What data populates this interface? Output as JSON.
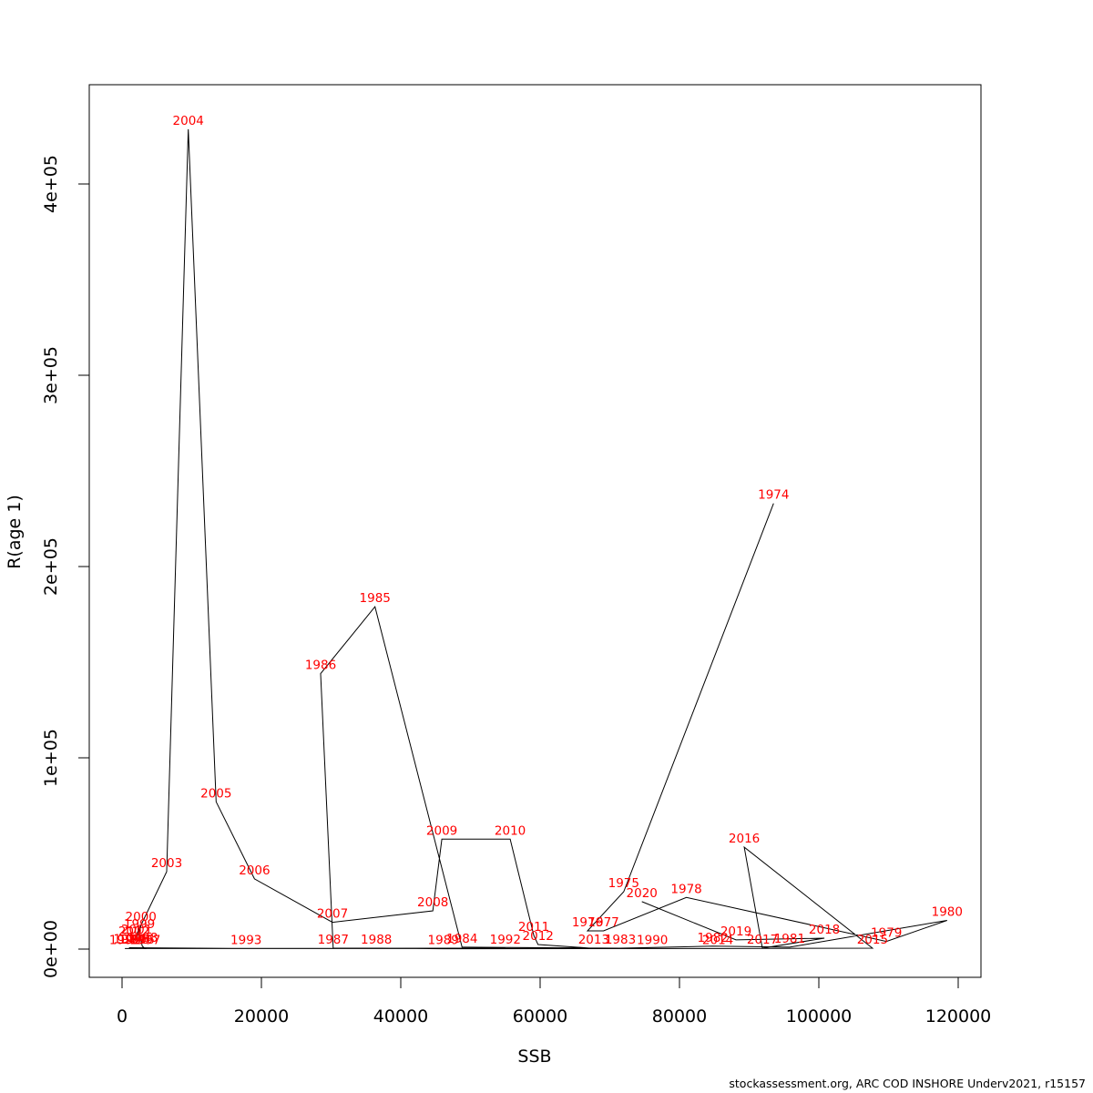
{
  "footer": "stockassessment.org, ARC COD INSHORE Underv2021, r15157",
  "chart_data": {
    "type": "scatter",
    "connected": true,
    "title": "",
    "xlabel": "SSB",
    "ylabel": "R(age 1)",
    "xlim": [
      0,
      122000
    ],
    "ylim": [
      0,
      450000
    ],
    "grid": false,
    "legend": "none",
    "line_color": "#000000",
    "label_color": "#ff0000",
    "axis_color": "#000000",
    "x_ticks": {
      "values": [
        0,
        20000,
        40000,
        60000,
        80000,
        100000,
        120000
      ],
      "labels": [
        "0",
        "20000",
        "40000",
        "60000",
        "80000",
        "100000",
        "120000"
      ]
    },
    "y_ticks": {
      "values": [
        0,
        100000,
        200000,
        300000,
        400000
      ],
      "labels": [
        "0e+00",
        "1e+05",
        "2e+05",
        "3e+05",
        "4e+05"
      ]
    },
    "points": [
      {
        "year": "1974",
        "ssb": 93500,
        "r": 233000
      },
      {
        "year": "1975",
        "ssb": 72000,
        "r": 30000
      },
      {
        "year": "1976",
        "ssb": 66800,
        "r": 9500
      },
      {
        "year": "1977",
        "ssb": 69100,
        "r": 9500
      },
      {
        "year": "1978",
        "ssb": 81000,
        "r": 27000
      },
      {
        "year": "1979",
        "ssb": 109700,
        "r": 4000
      },
      {
        "year": "1980",
        "ssb": 118400,
        "r": 15000
      },
      {
        "year": "1981",
        "ssb": 95800,
        "r": 1000
      },
      {
        "year": "1982",
        "ssb": 84800,
        "r": 1500
      },
      {
        "year": "1983",
        "ssb": 71500,
        "r": 500
      },
      {
        "year": "1984",
        "ssb": 48800,
        "r": 1000
      },
      {
        "year": "1985",
        "ssb": 36300,
        "r": 179000
      },
      {
        "year": "1986",
        "ssb": 28500,
        "r": 144000
      },
      {
        "year": "1987",
        "ssb": 30300,
        "r": 500
      },
      {
        "year": "1988",
        "ssb": 36500,
        "r": 500
      },
      {
        "year": "1989",
        "ssb": 46100,
        "r": 200
      },
      {
        "year": "1990",
        "ssb": 76100,
        "r": 300
      },
      {
        "year": "1991",
        "ssb": 400,
        "r": 300
      },
      {
        "year": "1992",
        "ssb": 55000,
        "r": 500
      },
      {
        "year": "1993",
        "ssb": 17800,
        "r": 300
      },
      {
        "year": "1994",
        "ssb": 1000,
        "r": 700
      },
      {
        "year": "1995",
        "ssb": 1700,
        "r": 500
      },
      {
        "year": "1996",
        "ssb": 2400,
        "r": 400
      },
      {
        "year": "1997",
        "ssb": 3300,
        "r": 300
      },
      {
        "year": "1998",
        "ssb": 2900,
        "r": 1500
      },
      {
        "year": "1999",
        "ssb": 2500,
        "r": 8600
      },
      {
        "year": "2000",
        "ssb": 2700,
        "r": 12400
      },
      {
        "year": "2001",
        "ssb": 2100,
        "r": 5700
      },
      {
        "year": "2002",
        "ssb": 1700,
        "r": 4800
      },
      {
        "year": "2003",
        "ssb": 6400,
        "r": 40500
      },
      {
        "year": "2004",
        "ssb": 9500,
        "r": 428600
      },
      {
        "year": "2005",
        "ssb": 13500,
        "r": 77000
      },
      {
        "year": "2006",
        "ssb": 19000,
        "r": 36700
      },
      {
        "year": "2007",
        "ssb": 30200,
        "r": 14000
      },
      {
        "year": "2008",
        "ssb": 44600,
        "r": 20000
      },
      {
        "year": "2009",
        "ssb": 45900,
        "r": 57500
      },
      {
        "year": "2010",
        "ssb": 55700,
        "r": 57500
      },
      {
        "year": "2011",
        "ssb": 59100,
        "r": 7100
      },
      {
        "year": "2012",
        "ssb": 59700,
        "r": 2400
      },
      {
        "year": "2013",
        "ssb": 67700,
        "r": 400
      },
      {
        "year": "2014",
        "ssb": 85500,
        "r": 300
      },
      {
        "year": "2015",
        "ssb": 107700,
        "r": 500
      },
      {
        "year": "2016",
        "ssb": 89300,
        "r": 53300
      },
      {
        "year": "2017",
        "ssb": 91900,
        "r": 500
      },
      {
        "year": "2018",
        "ssb": 100800,
        "r": 5700
      },
      {
        "year": "2019",
        "ssb": 88100,
        "r": 4800
      },
      {
        "year": "2020",
        "ssb": 74600,
        "r": 24800
      }
    ]
  }
}
